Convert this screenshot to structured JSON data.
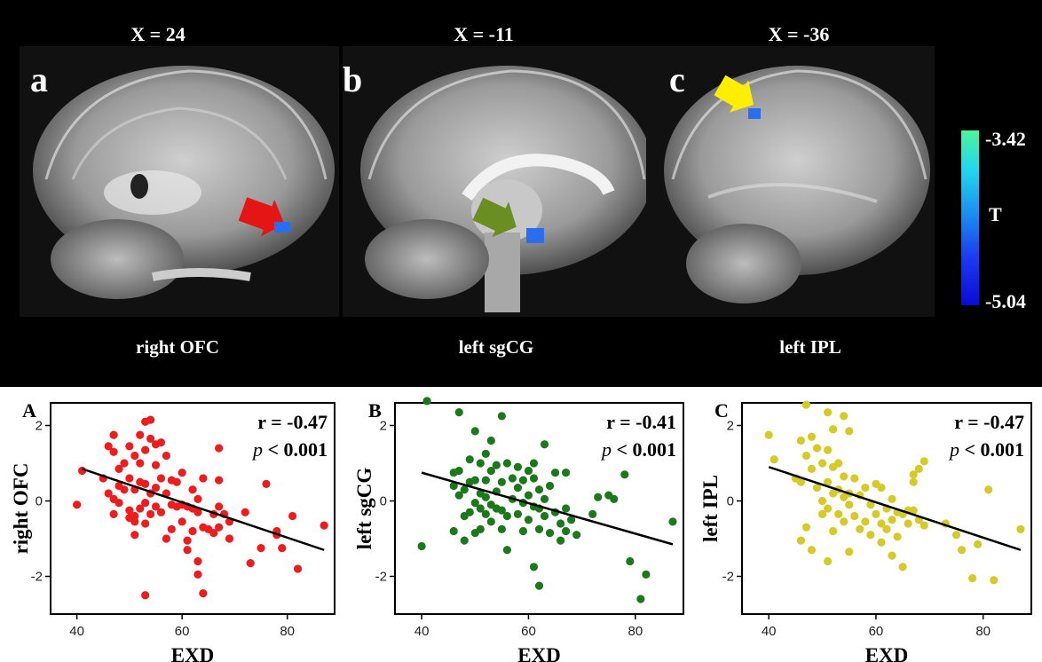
{
  "brain_panels": [
    {
      "letter": "a",
      "x_label": "X = 24",
      "region": "right OFC",
      "arrow_color": "#ee1111"
    },
    {
      "letter": "b",
      "x_label": "X = -11",
      "region": "left sgCG",
      "arrow_color": "#6b8e23"
    },
    {
      "letter": "c",
      "x_label": "X = -36",
      "region": "left IPL",
      "arrow_color": "#ffee00"
    }
  ],
  "colorbar": {
    "max_label": "-3.42",
    "min_label": "-5.04",
    "title": "T"
  },
  "chart_data": [
    {
      "type": "scatter",
      "panel_label": "A",
      "xlabel": "EXD",
      "ylabel": "right OFC",
      "xlim": [
        35,
        89
      ],
      "ylim": [
        -3,
        2.6
      ],
      "xticks": [
        40,
        60,
        80
      ],
      "yticks": [
        -2,
        0,
        2
      ],
      "annotation_r": "r = -0.47",
      "annotation_p": "p",
      "annotation_p_rest": " < 0.001",
      "color": "#ee1c1c",
      "fit": {
        "x": [
          41,
          87
        ],
        "y": [
          0.85,
          -1.3
        ]
      },
      "points": [
        [
          40,
          -0.1
        ],
        [
          41,
          0.8
        ],
        [
          45,
          0.6
        ],
        [
          46,
          1.45
        ],
        [
          46,
          0.2
        ],
        [
          47,
          1.75
        ],
        [
          47,
          1.3
        ],
        [
          47,
          0.05
        ],
        [
          47,
          -0.35
        ],
        [
          48,
          0.85
        ],
        [
          48,
          0.4
        ],
        [
          48,
          -0.05
        ],
        [
          49,
          1.0
        ],
        [
          49,
          0.3
        ],
        [
          50,
          1.45
        ],
        [
          50,
          0.6
        ],
        [
          50,
          -0.25
        ],
        [
          50,
          -0.45
        ],
        [
          51,
          1.2
        ],
        [
          51,
          0.3
        ],
        [
          51,
          -0.4
        ],
        [
          51,
          -0.55
        ],
        [
          51,
          -0.9
        ],
        [
          52,
          1.75
        ],
        [
          52,
          1.0
        ],
        [
          52,
          0.5
        ],
        [
          52,
          -0.2
        ],
        [
          53,
          2.1
        ],
        [
          53,
          1.35
        ],
        [
          53,
          0.45
        ],
        [
          53,
          -0.05
        ],
        [
          53,
          -0.6
        ],
        [
          53,
          -2.5
        ],
        [
          54,
          2.15
        ],
        [
          54,
          1.65
        ],
        [
          54,
          0.2
        ],
        [
          54,
          -0.35
        ],
        [
          55,
          1.5
        ],
        [
          55,
          0.95
        ],
        [
          55,
          0.35
        ],
        [
          55,
          -0.15
        ],
        [
          56,
          1.55
        ],
        [
          56,
          0.6
        ],
        [
          56,
          -0.3
        ],
        [
          57,
          1.2
        ],
        [
          57,
          0.2
        ],
        [
          57,
          -1.0
        ],
        [
          58,
          0.55
        ],
        [
          58,
          -0.1
        ],
        [
          58,
          -0.75
        ],
        [
          59,
          0.5
        ],
        [
          59,
          -0.15
        ],
        [
          60,
          0.75
        ],
        [
          60,
          -0.1
        ],
        [
          60,
          -0.55
        ],
        [
          61,
          -0.15
        ],
        [
          61,
          -1.05
        ],
        [
          61,
          -1.3
        ],
        [
          62,
          0.3
        ],
        [
          62,
          -0.2
        ],
        [
          62,
          -0.8
        ],
        [
          63,
          0.05
        ],
        [
          63,
          -0.3
        ],
        [
          63,
          -1.6
        ],
        [
          63,
          -1.95
        ],
        [
          64,
          0.6
        ],
        [
          64,
          -0.7
        ],
        [
          64,
          -2.45
        ],
        [
          65,
          -0.75
        ],
        [
          66,
          -0.35
        ],
        [
          66,
          -0.85
        ],
        [
          67,
          1.4
        ],
        [
          67,
          0.55
        ],
        [
          67,
          -0.7
        ],
        [
          67,
          -0.15
        ],
        [
          68,
          -0.35
        ],
        [
          69,
          -1.0
        ],
        [
          69,
          -0.55
        ],
        [
          72,
          -0.3
        ],
        [
          73,
          -1.65
        ],
        [
          75,
          -1.25
        ],
        [
          76,
          0.45
        ],
        [
          78,
          -0.8
        ],
        [
          78,
          -0.9
        ],
        [
          79,
          -1.25
        ],
        [
          81,
          -0.4
        ],
        [
          82,
          -1.8
        ],
        [
          87,
          -0.65
        ]
      ]
    },
    {
      "type": "scatter",
      "panel_label": "B",
      "xlabel": "EXD",
      "ylabel": "left sgCG",
      "xlim": [
        35,
        89
      ],
      "ylim": [
        -3,
        2.6
      ],
      "xticks": [
        40,
        60,
        80
      ],
      "yticks": [
        -2,
        0,
        2
      ],
      "annotation_r": "r = -0.41",
      "annotation_p": "p",
      "annotation_p_rest": " < 0.001",
      "color": "#1a7a1a",
      "fit": {
        "x": [
          40,
          87
        ],
        "y": [
          0.75,
          -1.15
        ]
      },
      "points": [
        [
          40,
          -1.2
        ],
        [
          41,
          2.65
        ],
        [
          46,
          0.4
        ],
        [
          46,
          0.75
        ],
        [
          46,
          -0.8
        ],
        [
          47,
          2.35
        ],
        [
          47,
          0.8
        ],
        [
          47,
          0.15
        ],
        [
          48,
          0.3
        ],
        [
          48,
          -0.4
        ],
        [
          48,
          -1.05
        ],
        [
          49,
          1.1
        ],
        [
          49,
          0.5
        ],
        [
          49,
          -0.3
        ],
        [
          50,
          1.85
        ],
        [
          50,
          0.55
        ],
        [
          50,
          -0.05
        ],
        [
          50,
          -0.85
        ],
        [
          51,
          1.0
        ],
        [
          51,
          0.2
        ],
        [
          51,
          -0.2
        ],
        [
          51,
          -0.75
        ],
        [
          52,
          1.25
        ],
        [
          52,
          0.55
        ],
        [
          52,
          0.1
        ],
        [
          52,
          -0.35
        ],
        [
          53,
          1.6
        ],
        [
          53,
          0.8
        ],
        [
          53,
          -0.1
        ],
        [
          53,
          -0.55
        ],
        [
          54,
          0.95
        ],
        [
          54,
          0.25
        ],
        [
          54,
          -0.2
        ],
        [
          55,
          2.25
        ],
        [
          55,
          0.5
        ],
        [
          55,
          -0.25
        ],
        [
          55,
          -0.75
        ],
        [
          56,
          1.0
        ],
        [
          56,
          -0.4
        ],
        [
          56,
          -1.3
        ],
        [
          57,
          0.6
        ],
        [
          57,
          0.05
        ],
        [
          58,
          0.9
        ],
        [
          58,
          0.35
        ],
        [
          58,
          -0.35
        ],
        [
          59,
          0.55
        ],
        [
          59,
          -0.05
        ],
        [
          59,
          -0.8
        ],
        [
          60,
          0.8
        ],
        [
          60,
          0.15
        ],
        [
          60,
          -0.5
        ],
        [
          61,
          1.0
        ],
        [
          61,
          0.6
        ],
        [
          61,
          -0.15
        ],
        [
          61,
          -1.75
        ],
        [
          62,
          0.3
        ],
        [
          62,
          -0.2
        ],
        [
          62,
          -0.75
        ],
        [
          62,
          -2.25
        ],
        [
          63,
          1.5
        ],
        [
          63,
          0.05
        ],
        [
          63,
          -0.4
        ],
        [
          64,
          0.4
        ],
        [
          64,
          -0.85
        ],
        [
          65,
          0.75
        ],
        [
          65,
          -0.3
        ],
        [
          66,
          -0.6
        ],
        [
          66,
          -1.05
        ],
        [
          67,
          0.75
        ],
        [
          67,
          -0.2
        ],
        [
          67,
          -0.8
        ],
        [
          68,
          -0.5
        ],
        [
          69,
          -0.9
        ],
        [
          72,
          -0.35
        ],
        [
          73,
          0.1
        ],
        [
          75,
          0.15
        ],
        [
          76,
          0.05
        ],
        [
          78,
          0.7
        ],
        [
          79,
          -1.6
        ],
        [
          81,
          -2.6
        ],
        [
          82,
          -1.95
        ],
        [
          87,
          -0.55
        ]
      ]
    },
    {
      "type": "scatter",
      "panel_label": "C",
      "xlabel": "EXD",
      "ylabel": "left IPL",
      "xlim": [
        35,
        89
      ],
      "ylim": [
        -3,
        2.6
      ],
      "xticks": [
        40,
        60,
        80
      ],
      "yticks": [
        -2,
        0,
        2
      ],
      "annotation_r": "r = -0.47",
      "annotation_p": "p",
      "annotation_p_rest": " < 0.001",
      "color": "#d6c928",
      "fit": {
        "x": [
          40,
          87
        ],
        "y": [
          0.9,
          -1.3
        ]
      },
      "points": [
        [
          40,
          1.75
        ],
        [
          41,
          1.1
        ],
        [
          45,
          0.6
        ],
        [
          46,
          1.6
        ],
        [
          46,
          0.5
        ],
        [
          46,
          -1.05
        ],
        [
          47,
          2.55
        ],
        [
          47,
          1.2
        ],
        [
          47,
          -0.7
        ],
        [
          48,
          1.7
        ],
        [
          48,
          0.85
        ],
        [
          48,
          -1.3
        ],
        [
          49,
          1.4
        ],
        [
          49,
          0.35
        ],
        [
          50,
          1.0
        ],
        [
          50,
          0.0
        ],
        [
          50,
          -0.35
        ],
        [
          51,
          2.35
        ],
        [
          51,
          1.35
        ],
        [
          51,
          0.5
        ],
        [
          51,
          -0.2
        ],
        [
          51,
          -1.6
        ],
        [
          52,
          1.9
        ],
        [
          52,
          0.9
        ],
        [
          52,
          0.2
        ],
        [
          52,
          -0.8
        ],
        [
          53,
          1.0
        ],
        [
          53,
          0.3
        ],
        [
          53,
          -0.35
        ],
        [
          54,
          2.25
        ],
        [
          54,
          0.65
        ],
        [
          54,
          0.1
        ],
        [
          54,
          -0.55
        ],
        [
          55,
          1.85
        ],
        [
          55,
          0.2
        ],
        [
          55,
          -0.1
        ],
        [
          55,
          -1.35
        ],
        [
          56,
          0.6
        ],
        [
          56,
          -0.4
        ],
        [
          57,
          0.15
        ],
        [
          57,
          -0.75
        ],
        [
          58,
          0.35
        ],
        [
          58,
          -0.55
        ],
        [
          59,
          -0.1
        ],
        [
          59,
          -0.9
        ],
        [
          60,
          0.45
        ],
        [
          60,
          -0.35
        ],
        [
          61,
          0.35
        ],
        [
          61,
          -0.6
        ],
        [
          61,
          -1.1
        ],
        [
          62,
          -0.2
        ],
        [
          62,
          -0.75
        ],
        [
          63,
          0.05
        ],
        [
          63,
          -0.5
        ],
        [
          63,
          -1.45
        ],
        [
          64,
          -0.3
        ],
        [
          64,
          -0.95
        ],
        [
          65,
          -0.35
        ],
        [
          65,
          -1.75
        ],
        [
          66,
          -0.25
        ],
        [
          66,
          -0.6
        ],
        [
          67,
          0.7
        ],
        [
          67,
          0.5
        ],
        [
          67,
          -0.25
        ],
        [
          68,
          0.85
        ],
        [
          68,
          -0.5
        ],
        [
          69,
          1.05
        ],
        [
          69,
          -0.65
        ],
        [
          73,
          -0.6
        ],
        [
          75,
          -0.9
        ],
        [
          76,
          -1.3
        ],
        [
          78,
          -2.05
        ],
        [
          79,
          -1.15
        ],
        [
          81,
          0.3
        ],
        [
          82,
          -2.1
        ],
        [
          87,
          -0.75
        ]
      ]
    }
  ]
}
